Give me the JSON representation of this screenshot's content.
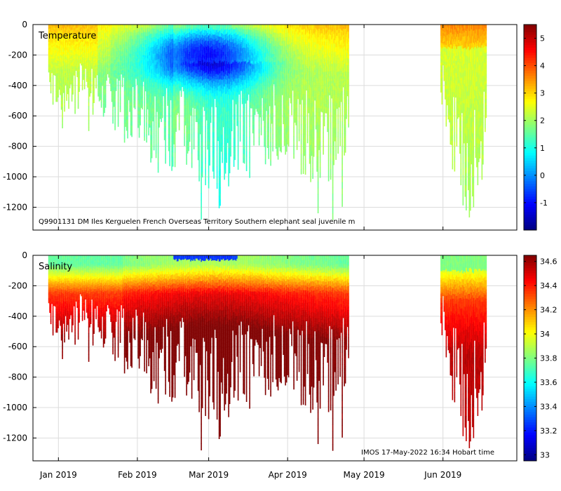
{
  "chart_data": [
    {
      "type": "heatmap",
      "title": "Temperature",
      "variable": "Temperature",
      "annotation": "Q9901131 DM Iles Kerguelen French Overseas Territory Southern elephant seal juvenile m",
      "xlabel": "",
      "ylabel": "",
      "x_ticks": [
        "Jan 2019",
        "Feb 2019",
        "Mar 2019",
        "Apr 2019",
        "May 2019",
        "Jun 2019"
      ],
      "x_tick_day": [
        0,
        31,
        59,
        90,
        120,
        151
      ],
      "x_range_days": [
        -10,
        180
      ],
      "ylim": [
        -1350,
        0
      ],
      "y_ticks": [
        0,
        -200,
        -400,
        -600,
        -800,
        -1000,
        -1200
      ],
      "colorbar": {
        "min": -2,
        "max": 5.5,
        "ticks": [
          -1,
          0,
          1,
          2,
          3,
          4,
          5
        ],
        "colormap": "jet"
      },
      "grid": true,
      "data_periods_days": [
        [
          -4,
          114
        ],
        [
          150,
          168
        ]
      ],
      "approx_max_profile_depth_m": [
        [
          -4,
          -500
        ],
        [
          10,
          -550
        ],
        [
          20,
          -600
        ],
        [
          30,
          -750
        ],
        [
          40,
          -900
        ],
        [
          50,
          -850
        ],
        [
          55,
          -1200
        ],
        [
          60,
          -1000
        ],
        [
          70,
          -950
        ],
        [
          80,
          -900
        ],
        [
          90,
          -800
        ],
        [
          100,
          -1000
        ],
        [
          110,
          -900
        ],
        [
          114,
          -700
        ],
        [
          150,
          -500
        ],
        [
          156,
          -1000
        ],
        [
          162,
          -1200
        ],
        [
          168,
          -800
        ]
      ]
    },
    {
      "type": "heatmap",
      "title": "Salinity",
      "variable": "Salinity",
      "annotation": "IMOS 17-May-2022 16:34 Hobart time",
      "xlabel": "",
      "ylabel": "",
      "x_ticks": [
        "Jan 2019",
        "Feb 2019",
        "Mar 2019",
        "Apr 2019",
        "May 2019",
        "Jun 2019"
      ],
      "x_tick_day": [
        0,
        31,
        59,
        90,
        120,
        151
      ],
      "x_range_days": [
        -10,
        180
      ],
      "ylim": [
        -1350,
        0
      ],
      "y_ticks": [
        0,
        -200,
        -400,
        -600,
        -800,
        -1000,
        -1200
      ],
      "colorbar": {
        "min": 32.95,
        "max": 34.65,
        "ticks": [
          33,
          33.2,
          33.4,
          33.6,
          33.8,
          34,
          34.2,
          34.4,
          34.6
        ],
        "colormap": "jet"
      },
      "grid": true,
      "data_periods_days": [
        [
          -4,
          114
        ],
        [
          150,
          168
        ]
      ],
      "approx_max_profile_depth_m": [
        [
          -4,
          -500
        ],
        [
          10,
          -550
        ],
        [
          20,
          -600
        ],
        [
          30,
          -750
        ],
        [
          40,
          -900
        ],
        [
          50,
          -850
        ],
        [
          55,
          -1200
        ],
        [
          60,
          -1000
        ],
        [
          70,
          -950
        ],
        [
          80,
          -900
        ],
        [
          90,
          -800
        ],
        [
          100,
          -1000
        ],
        [
          110,
          -900
        ],
        [
          114,
          -700
        ],
        [
          150,
          -500
        ],
        [
          156,
          -1000
        ],
        [
          162,
          -1200
        ],
        [
          168,
          -800
        ]
      ]
    }
  ]
}
